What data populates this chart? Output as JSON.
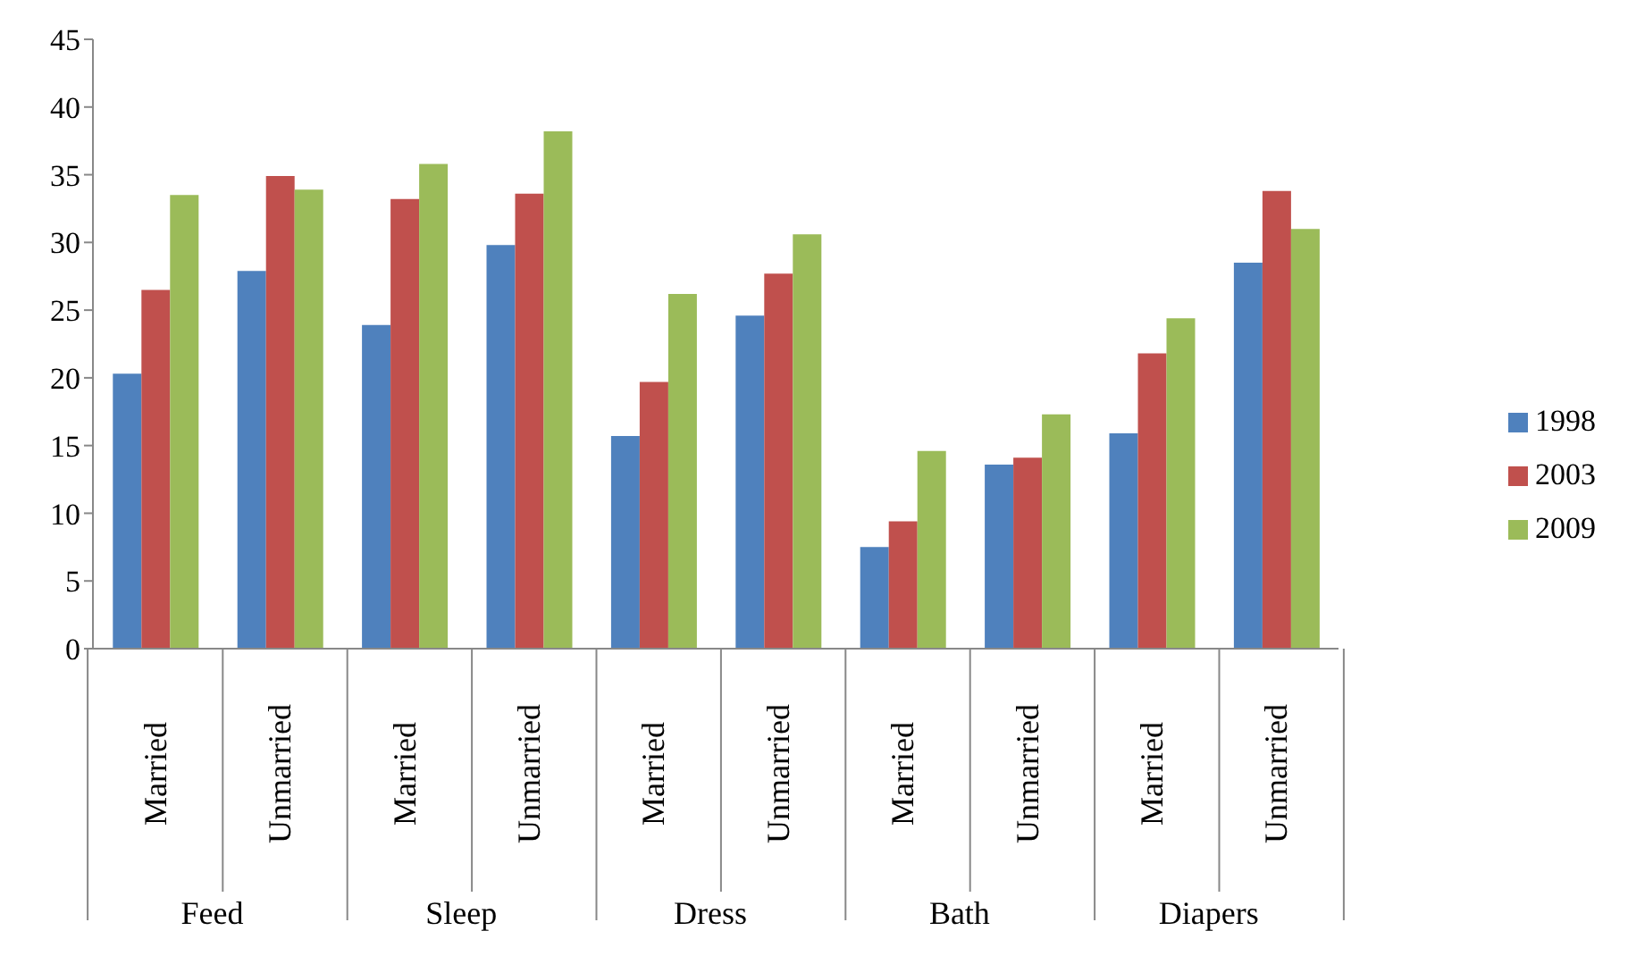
{
  "chart_data": {
    "type": "bar",
    "categories": [
      "Married",
      "Unmarried",
      "Married",
      "Unmarried",
      "Married",
      "Unmarried",
      "Married",
      "Unmarried",
      "Married",
      "Unmarried"
    ],
    "annotations": [
      "Feed",
      "Sleep",
      "Dress",
      "Bath",
      "Diapers"
    ],
    "series": [
      {
        "name": "1998",
        "color": "#4f81bd",
        "values": [
          20.3,
          27.9,
          23.9,
          29.8,
          15.7,
          24.6,
          7.5,
          13.6,
          15.9,
          28.5
        ]
      },
      {
        "name": "2003",
        "color": "#c0504d",
        "values": [
          26.5,
          34.9,
          33.2,
          33.6,
          19.7,
          27.7,
          9.4,
          14.1,
          21.8,
          33.8
        ]
      },
      {
        "name": "2009",
        "color": "#9bbb59",
        "values": [
          33.5,
          33.9,
          35.8,
          38.2,
          26.2,
          30.6,
          14.6,
          17.3,
          24.4,
          31.0
        ]
      }
    ],
    "ylim": [
      0,
      45
    ],
    "yticks": [
      0,
      5,
      10,
      15,
      20,
      25,
      30,
      35,
      40,
      45
    ],
    "grid": false,
    "legend": "right"
  }
}
